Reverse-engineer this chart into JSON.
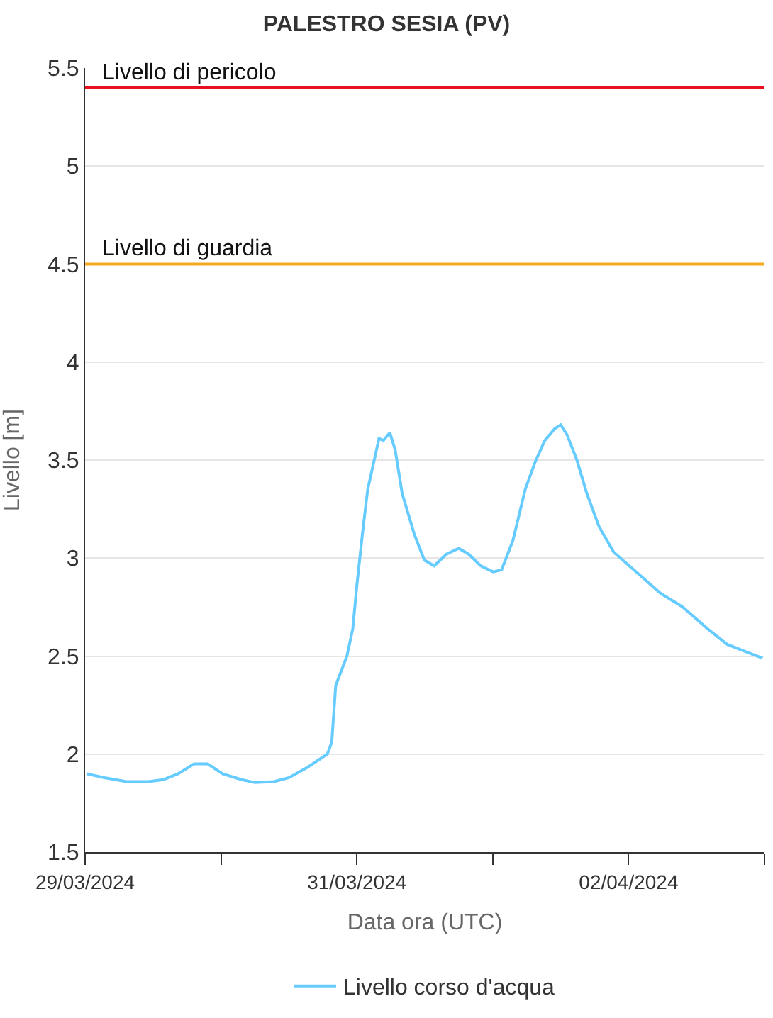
{
  "chart_data": {
    "type": "line",
    "title": "PALESTRO SESIA (PV)",
    "xlabel": "Data ora (UTC)",
    "ylabel": "Livello [m]",
    "x": [
      "2024-03-29T00:15",
      "2024-03-29T03:24",
      "2024-03-29T07:18",
      "2024-03-29T11:13",
      "2024-03-29T13:50",
      "2024-03-29T16:26",
      "2024-03-29T19:14",
      "2024-03-29T21:39",
      "2024-03-30T00:16",
      "2024-03-30T03:39",
      "2024-03-30T06:00",
      "2024-03-30T09:23",
      "2024-03-30T12:00",
      "2024-03-30T15:08",
      "2024-03-30T17:13",
      "2024-03-30T18:47",
      "2024-03-30T19:34",
      "2024-03-30T20:16",
      "2024-03-30T22:15",
      "2024-03-30T23:17",
      "2024-03-31T00:00",
      "2024-03-31T01:03",
      "2024-03-31T01:55",
      "2024-03-31T03:55",
      "2024-03-31T04:42",
      "2024-03-31T05:50",
      "2024-03-31T06:47",
      "2024-03-31T08:00",
      "2024-03-31T10:10",
      "2024-03-31T11:55",
      "2024-03-31T13:39",
      "2024-03-31T15:50",
      "2024-03-31T18:00",
      "2024-03-31T19:45",
      "2024-03-31T21:55",
      "2024-04-01T00:05",
      "2024-04-01T01:34",
      "2024-04-01T03:34",
      "2024-04-01T05:44",
      "2024-04-01T07:29",
      "2024-04-01T09:12",
      "2024-04-01T10:57",
      "2024-04-01T12:00",
      "2024-04-01T13:07",
      "2024-04-01T14:52",
      "2024-04-01T16:37",
      "2024-04-01T18:47",
      "2024-04-01T21:23",
      "2024-04-02T01:44",
      "2024-04-02T05:40",
      "2024-04-02T09:35",
      "2024-04-02T13:55",
      "2024-04-02T17:24",
      "2024-04-02T20:52",
      "2024-04-02T23:39"
    ],
    "series": [
      {
        "name": "Livello corso d'acqua",
        "color": "#66ccff",
        "values": [
          1.9,
          1.88,
          1.86,
          1.86,
          1.87,
          1.9,
          1.95,
          1.95,
          1.9,
          1.87,
          1.855,
          1.86,
          1.88,
          1.93,
          1.97,
          2.0,
          2.06,
          2.35,
          2.5,
          2.64,
          2.86,
          3.14,
          3.35,
          3.61,
          3.6,
          3.64,
          3.55,
          3.33,
          3.12,
          2.99,
          2.96,
          3.02,
          3.05,
          3.02,
          2.96,
          2.93,
          2.94,
          3.09,
          3.35,
          3.49,
          3.6,
          3.66,
          3.68,
          3.63,
          3.5,
          3.33,
          3.16,
          3.03,
          2.92,
          2.82,
          2.75,
          2.64,
          2.56,
          2.52,
          2.49
        ]
      }
    ],
    "xlim": [
      "2024-03-29T00:00",
      "2024-04-03T00:00"
    ],
    "xticks": [
      {
        "value": "2024-03-29",
        "label": "29/03/2024"
      },
      {
        "value": "2024-03-30",
        "label": null
      },
      {
        "value": "2024-03-31",
        "label": "31/03/2024"
      },
      {
        "value": "2024-04-01",
        "label": null
      },
      {
        "value": "2024-04-02",
        "label": "02/04/2024"
      },
      {
        "value": "2024-04-03",
        "label": null
      }
    ],
    "ylim": [
      1.5,
      5.5
    ],
    "yticks": [
      1.5,
      2,
      2.5,
      3,
      3.5,
      4,
      4.5,
      5,
      5.5
    ],
    "ref_lines": [
      {
        "axis": "y",
        "value": 5.4,
        "label": "Livello di pericolo",
        "color": "#e8101e"
      },
      {
        "axis": "y",
        "value": 4.5,
        "label": "Livello di guardia",
        "color": "#f6a821"
      }
    ],
    "grid": "y",
    "legend": "bottom",
    "marker": "none",
    "line_style": "solid"
  }
}
